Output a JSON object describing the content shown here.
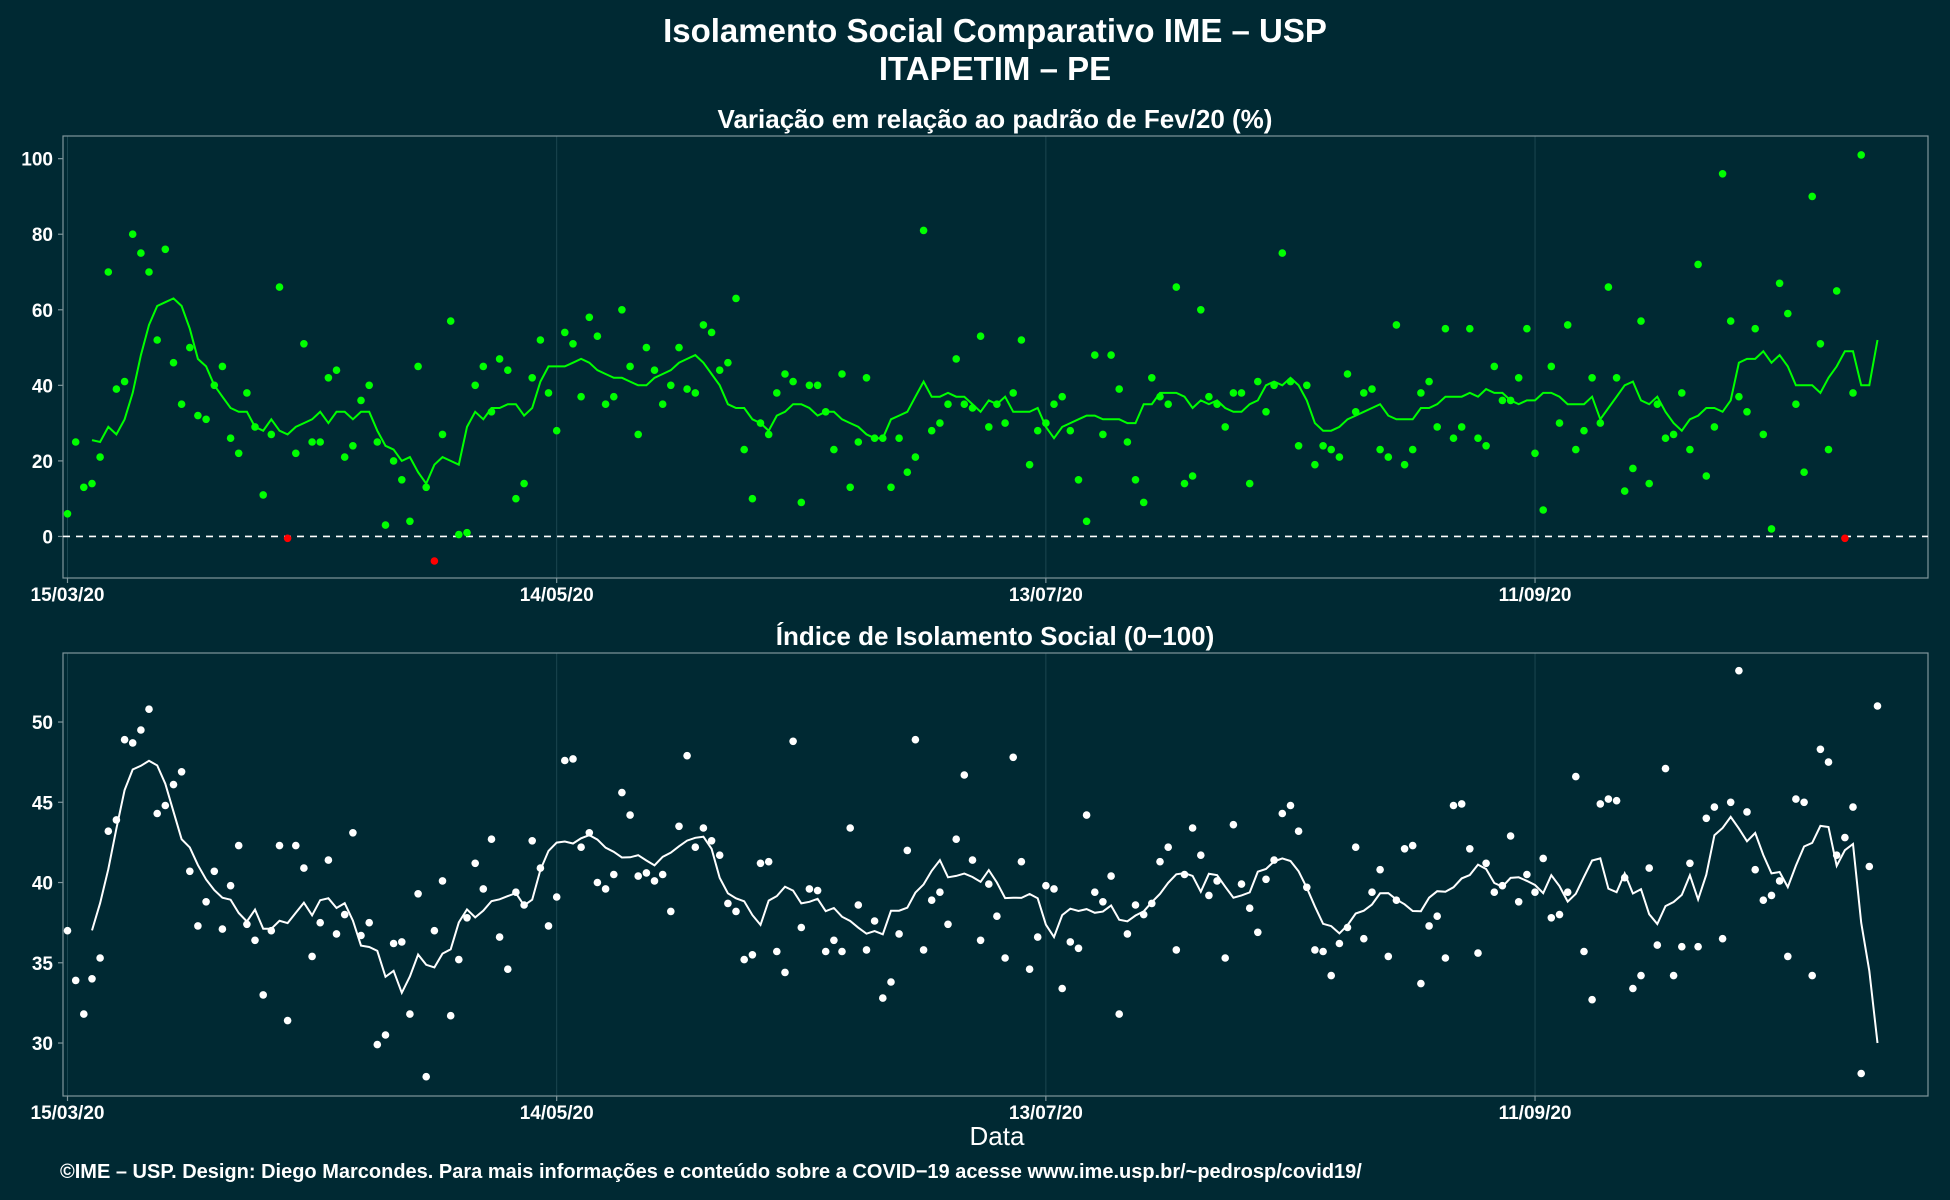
{
  "title": "Isolamento Social Comparativo IME – USP",
  "subtitle": "ITAPETIM – PE",
  "footer": "©IME – USP. Design: Diego Marcondes. Para mais informações e conteúdo sobre a COVID−19 acesse www.ime.usp.br/~pedrosp/covid19/",
  "xlabel": "Data",
  "colors": {
    "background": "#002933",
    "panel_border": "#7f959b",
    "grid": "#1b4650",
    "variation": "#00ff00",
    "negative": "#ff0000",
    "index": "#ffffff"
  },
  "chart_data": [
    {
      "type": "scatter",
      "title": "Variação em relação ao padrão de Fev/20 (%)",
      "x_start": "15/03/20",
      "x_ticks": [
        "15/03/20",
        "14/05/20",
        "13/07/20",
        "11/09/20"
      ],
      "ylim": [
        -11,
        106
      ],
      "y_ticks": [
        0,
        20,
        40,
        60,
        80,
        100
      ],
      "reference_line": 0,
      "grid": true,
      "points": [
        6,
        25,
        13,
        14,
        21,
        70,
        39,
        41,
        80,
        75,
        70,
        52,
        76,
        46,
        35,
        50,
        32,
        31,
        40,
        45,
        26,
        22,
        38,
        29,
        11,
        27,
        66,
        -0.5,
        22,
        51,
        25,
        25,
        42,
        44,
        21,
        24,
        36,
        40,
        25,
        3,
        20,
        15,
        4,
        45,
        13,
        -6.5,
        27,
        57,
        0.5,
        1,
        40,
        45,
        33,
        47,
        44,
        10,
        14,
        42,
        52,
        38,
        28,
        54,
        51,
        37,
        58,
        53,
        35,
        37,
        60,
        45,
        27,
        50,
        44,
        35,
        40,
        50,
        39,
        38,
        56,
        54,
        44,
        46,
        63,
        23,
        10,
        30,
        27,
        38,
        43,
        41,
        9,
        40,
        40,
        33,
        23,
        43,
        13,
        25,
        42,
        26,
        26,
        13,
        26,
        17,
        21,
        81,
        28,
        30,
        35,
        47,
        35,
        34,
        53,
        29,
        35,
        30,
        38,
        52,
        19,
        28,
        30,
        35,
        37,
        28,
        15,
        4,
        48,
        27,
        48,
        39,
        25,
        15,
        9,
        42,
        37,
        35,
        66,
        14,
        16,
        60,
        37,
        35,
        29,
        38,
        38,
        14,
        41,
        33,
        40,
        75,
        41,
        24,
        40,
        19,
        24,
        23,
        21,
        43,
        33,
        38,
        39,
        23,
        21,
        56,
        19,
        23,
        38,
        41,
        29,
        55,
        26,
        29,
        55,
        26,
        24,
        45,
        36,
        36,
        42,
        55,
        22,
        7,
        45,
        30,
        56,
        23,
        28,
        42,
        30,
        66,
        42,
        12,
        18,
        57,
        14,
        35,
        26,
        27,
        38,
        23,
        72,
        16,
        29,
        96,
        57,
        37,
        33,
        55,
        27,
        2,
        67,
        59,
        35,
        17,
        90,
        51,
        23,
        65,
        -0.5,
        38,
        101
      ],
      "points_red": [
        29,
        27,
        -0.5,
        13,
        21,
        -6.5,
        -0.5
      ],
      "moving_average": [
        null,
        null,
        null,
        25.5,
        25,
        29,
        27,
        31,
        38,
        48,
        56,
        61,
        62,
        63,
        61,
        55,
        47,
        45,
        40,
        37,
        34,
        33,
        33,
        29,
        28,
        31,
        28,
        27,
        29,
        30,
        31,
        33,
        30,
        33,
        33,
        31,
        33,
        33,
        28,
        24,
        23,
        20,
        21,
        17,
        14,
        19,
        21,
        20,
        19,
        29,
        33,
        31,
        34,
        34,
        35,
        35,
        32,
        34,
        41,
        45,
        45,
        45,
        46,
        47,
        46,
        44,
        43,
        42,
        42,
        41,
        40,
        40,
        42,
        43,
        44,
        46,
        47,
        48,
        46,
        43,
        40,
        35,
        34,
        34,
        31,
        30,
        28,
        32,
        33,
        35,
        35,
        34,
        32,
        33,
        33,
        31,
        30,
        29,
        27,
        26,
        26,
        31,
        32,
        33,
        37,
        41,
        37,
        37,
        38,
        37,
        37,
        35,
        33,
        36,
        35,
        37,
        33,
        33,
        33,
        34,
        29,
        26,
        29,
        30,
        31,
        32,
        32,
        31,
        31,
        31,
        30,
        30,
        35,
        35,
        38,
        38,
        38,
        37,
        34,
        36,
        35,
        36,
        34,
        33,
        33,
        35,
        36,
        40,
        41,
        40,
        42,
        40,
        36,
        30,
        28,
        28,
        29,
        31,
        32,
        33,
        34,
        35,
        32,
        31,
        31,
        31,
        34,
        34,
        35,
        37,
        37,
        37,
        38,
        37,
        39,
        38,
        38,
        36,
        35,
        36,
        36,
        38,
        38,
        37,
        35,
        35,
        35,
        37,
        31,
        34,
        37,
        40,
        41,
        36,
        35,
        37,
        33,
        30,
        28,
        31,
        32,
        34,
        34,
        33,
        36,
        46,
        47,
        47,
        49,
        46,
        48,
        45,
        40,
        40,
        40,
        38,
        42,
        45,
        49,
        49,
        40,
        40,
        52,
        null
      ]
    },
    {
      "type": "scatter",
      "title": "Índice de Isolamento Social (0−100)",
      "x_start": "15/03/20",
      "x_ticks": [
        "15/03/20",
        "14/05/20",
        "13/07/20",
        "11/09/20"
      ],
      "ylim": [
        26.7,
        54.3
      ],
      "y_ticks": [
        30,
        35,
        40,
        45,
        50
      ],
      "grid": true,
      "points": [
        37,
        33.9,
        31.8,
        34,
        35.3,
        43.2,
        43.9,
        48.9,
        48.7,
        49.5,
        50.8,
        44.3,
        44.8,
        46.1,
        46.9,
        40.7,
        37.3,
        38.8,
        40.7,
        37.1,
        39.8,
        42.3,
        37.4,
        36.4,
        33,
        37,
        42.3,
        31.4,
        42.3,
        40.9,
        35.4,
        37.5,
        41.4,
        36.8,
        38,
        43.1,
        36.7,
        37.5,
        29.9,
        30.5,
        36.2,
        36.3,
        31.8,
        39.3,
        27.9,
        37,
        40.1,
        31.7,
        35.2,
        37.8,
        41.2,
        39.6,
        42.7,
        36.6,
        34.6,
        39.4,
        38.6,
        42.6,
        40.9,
        37.3,
        39.1,
        47.6,
        47.7,
        42.2,
        43.1,
        40,
        39.6,
        40.5,
        45.6,
        44.2,
        40.4,
        40.6,
        40.1,
        40.5,
        38.2,
        43.5,
        47.9,
        42.2,
        43.4,
        42.6,
        41.7,
        38.7,
        38.2,
        35.2,
        35.5,
        41.2,
        41.3,
        35.7,
        34.4,
        48.8,
        37.2,
        39.6,
        39.5,
        35.7,
        36.4,
        35.7,
        43.4,
        38.6,
        35.8,
        37.6,
        32.8,
        33.8,
        36.8,
        42,
        48.9,
        35.8,
        38.9,
        39.4,
        37.4,
        42.7,
        46.7,
        41.4,
        36.4,
        39.9,
        37.9,
        35.3,
        47.8,
        41.3,
        34.6,
        36.6,
        39.8,
        39.6,
        33.4,
        36.3,
        35.9,
        44.2,
        39.4,
        38.8,
        40.4,
        31.8,
        36.8,
        38.6,
        38,
        38.7,
        41.3,
        42.2,
        35.8,
        40.5,
        43.4,
        41.7,
        39.2,
        40.1,
        35.3,
        43.6,
        39.9,
        38.4,
        36.9,
        40.2,
        41.4,
        44.3,
        44.8,
        43.2,
        39.7,
        35.8,
        35.7,
        34.2,
        36.2,
        37.2,
        42.2,
        36.5,
        39.4,
        40.8,
        35.4,
        38.9,
        42.1,
        42.3,
        33.7,
        37.3,
        37.9,
        35.3,
        44.8,
        44.9,
        42.1,
        35.6,
        41.2,
        39.4,
        39.8,
        42.9,
        38.8,
        40.5,
        39.4,
        41.5,
        37.8,
        38,
        39.4,
        46.6,
        35.7,
        32.7,
        44.9,
        45.2,
        45.1,
        40.3,
        33.4,
        34.2,
        40.9,
        36.1,
        47.1,
        34.2,
        36,
        41.2,
        36,
        44,
        44.7,
        36.5,
        45,
        53.2,
        44.4,
        40.8,
        38.9,
        39.2,
        40.1,
        35.4,
        45.2,
        45,
        34.2,
        48.3,
        47.5,
        41.7,
        42.8,
        44.7,
        28.1,
        41,
        51
      ]
    }
  ]
}
